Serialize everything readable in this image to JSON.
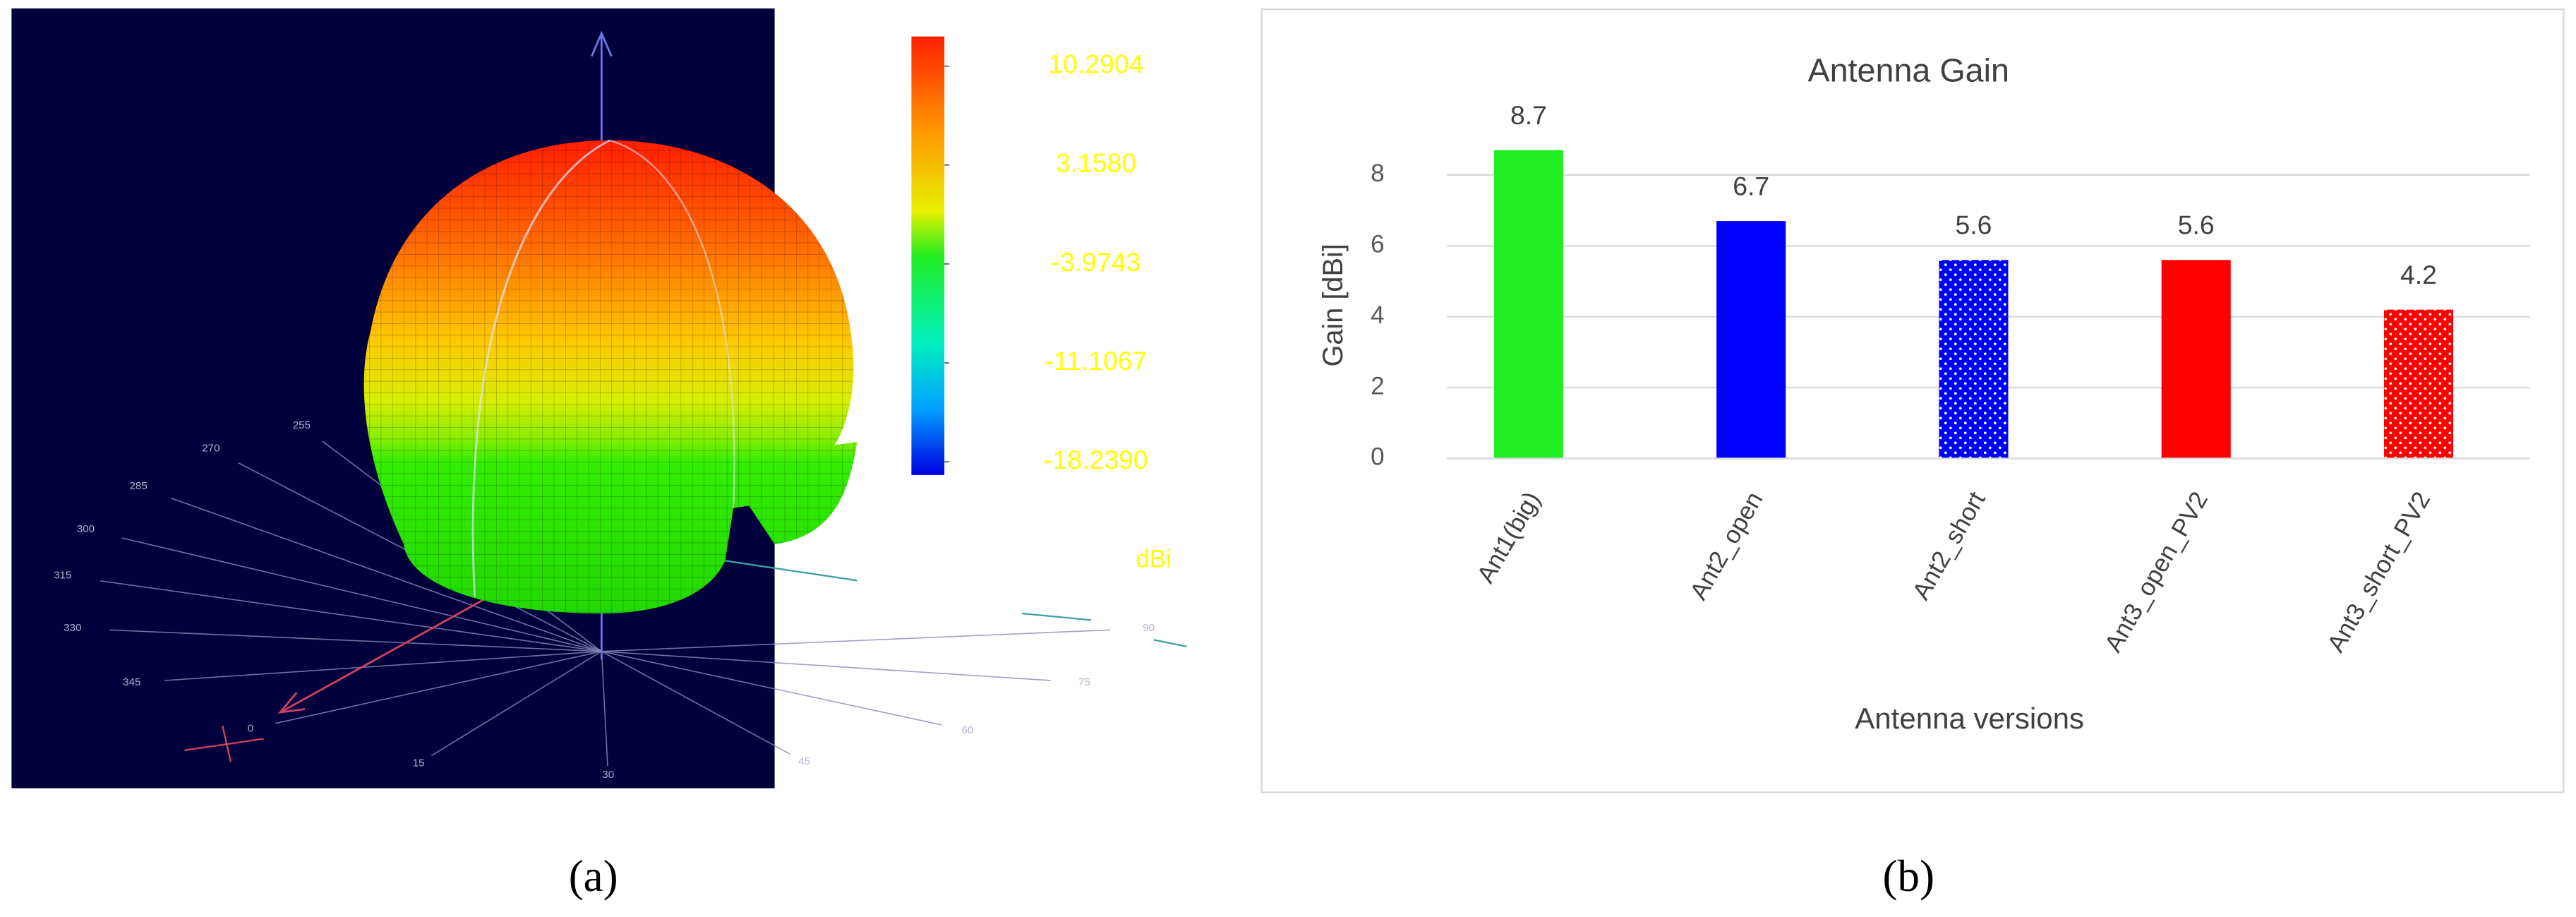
{
  "chart_data": [
    {
      "type": "surface3d",
      "panel_label": "(a)",
      "clim": [
        -18.239,
        10.2904
      ],
      "colorbar_ticks": [
        10.2904,
        {
          "value": 3.158,
          "label": "3.1580"
        },
        -3.9743,
        -11.1067,
        {
          "value": -18.239,
          "label": "-18.2390"
        }
      ],
      "colorbar_label": "dBi",
      "angle_ticks": [
        255,
        270,
        285,
        300,
        315,
        330,
        345,
        0,
        15,
        30,
        45,
        60,
        75,
        90
      ]
    },
    {
      "type": "bar",
      "panel_label": "(b)",
      "title": "Antenna Gain",
      "x_label": "Antenna versions",
      "y_label": "Gain [dBi]",
      "categories": [
        "Ant1(big)",
        "Ant2_open",
        "Ant2_short",
        "Ant3_open_PV2",
        "Ant3_short_PV2"
      ],
      "values": [
        8.7,
        6.7,
        5.6,
        5.6,
        4.2
      ],
      "colors": [
        "#22ee22",
        "#0000ff",
        "#0000ff",
        "#ff0000",
        "#ff0000"
      ],
      "fills": [
        "solid",
        "solid",
        "dots",
        "solid",
        "dots"
      ],
      "ylim": [
        0,
        9
      ],
      "yticks": [
        0,
        2,
        4,
        6,
        8
      ],
      "grid": true
    }
  ]
}
